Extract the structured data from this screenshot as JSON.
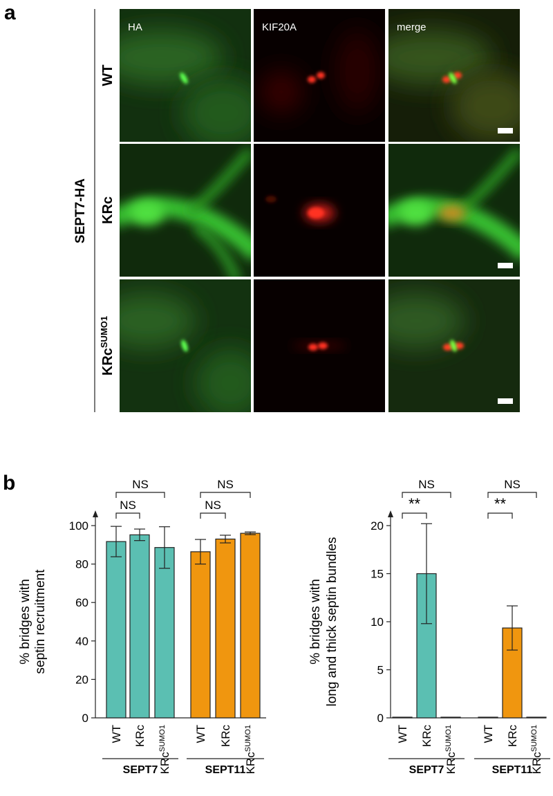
{
  "panel_a": {
    "label": "a",
    "columns": [
      "HA",
      "KIF20A",
      "merge"
    ],
    "rows": [
      {
        "text": "WT"
      },
      {
        "text": "KRc"
      },
      {
        "text": "KRc",
        "sup": "SUMO1"
      }
    ],
    "side_label": "SEPT7-HA"
  },
  "panel_b_label": "b",
  "chart_data": [
    {
      "type": "bar",
      "ylabel": [
        "% bridges with",
        "septin recruitment"
      ],
      "ylim": [
        0,
        100
      ],
      "yticks": [
        0,
        20,
        40,
        60,
        80,
        100
      ],
      "categories": [
        {
          "text": "WT"
        },
        {
          "text": "KRc"
        },
        {
          "text": "KRc",
          "sup": "SUMO1"
        }
      ],
      "series": [
        {
          "name": "SEPT7",
          "color": "#5bbfb2",
          "values": [
            91.7,
            95.2,
            88.6
          ],
          "errors": [
            7.9,
            3,
            10.8
          ]
        },
        {
          "name": "SEPT11",
          "color": "#f0960f",
          "values": [
            86.4,
            93,
            96
          ],
          "errors": [
            6.4,
            2,
            0.7
          ]
        }
      ],
      "comparisons": [
        {
          "series": 0,
          "from": 0,
          "to": 1,
          "label": "NS"
        },
        {
          "series": 0,
          "from": 0,
          "to": 2,
          "label": "NS"
        },
        {
          "series": 1,
          "from": 0,
          "to": 1,
          "label": "NS"
        },
        {
          "series": 1,
          "from": 0,
          "to": 2,
          "label": "NS"
        }
      ]
    },
    {
      "type": "bar",
      "ylabel": [
        "% bridges with",
        "long and thick septin bundles"
      ],
      "ylim": [
        0,
        20
      ],
      "yticks": [
        0,
        5,
        10,
        15,
        20
      ],
      "categories": [
        {
          "text": "WT"
        },
        {
          "text": "KRc"
        },
        {
          "text": "KRc",
          "sup": "SUMO1"
        }
      ],
      "series": [
        {
          "name": "SEPT7",
          "color": "#5bbfb2",
          "values": [
            0,
            15,
            0
          ],
          "errors": [
            0,
            5.2,
            0
          ]
        },
        {
          "name": "SEPT11",
          "color": "#f0960f",
          "values": [
            0,
            9.35,
            0
          ],
          "errors": [
            0,
            2.3,
            0
          ]
        }
      ],
      "comparisons": [
        {
          "series": 0,
          "from": 0,
          "to": 1,
          "label": "**"
        },
        {
          "series": 0,
          "from": 0,
          "to": 2,
          "label": "NS"
        },
        {
          "series": 1,
          "from": 0,
          "to": 1,
          "label": "**"
        },
        {
          "series": 1,
          "from": 0,
          "to": 2,
          "label": "NS"
        }
      ]
    }
  ]
}
